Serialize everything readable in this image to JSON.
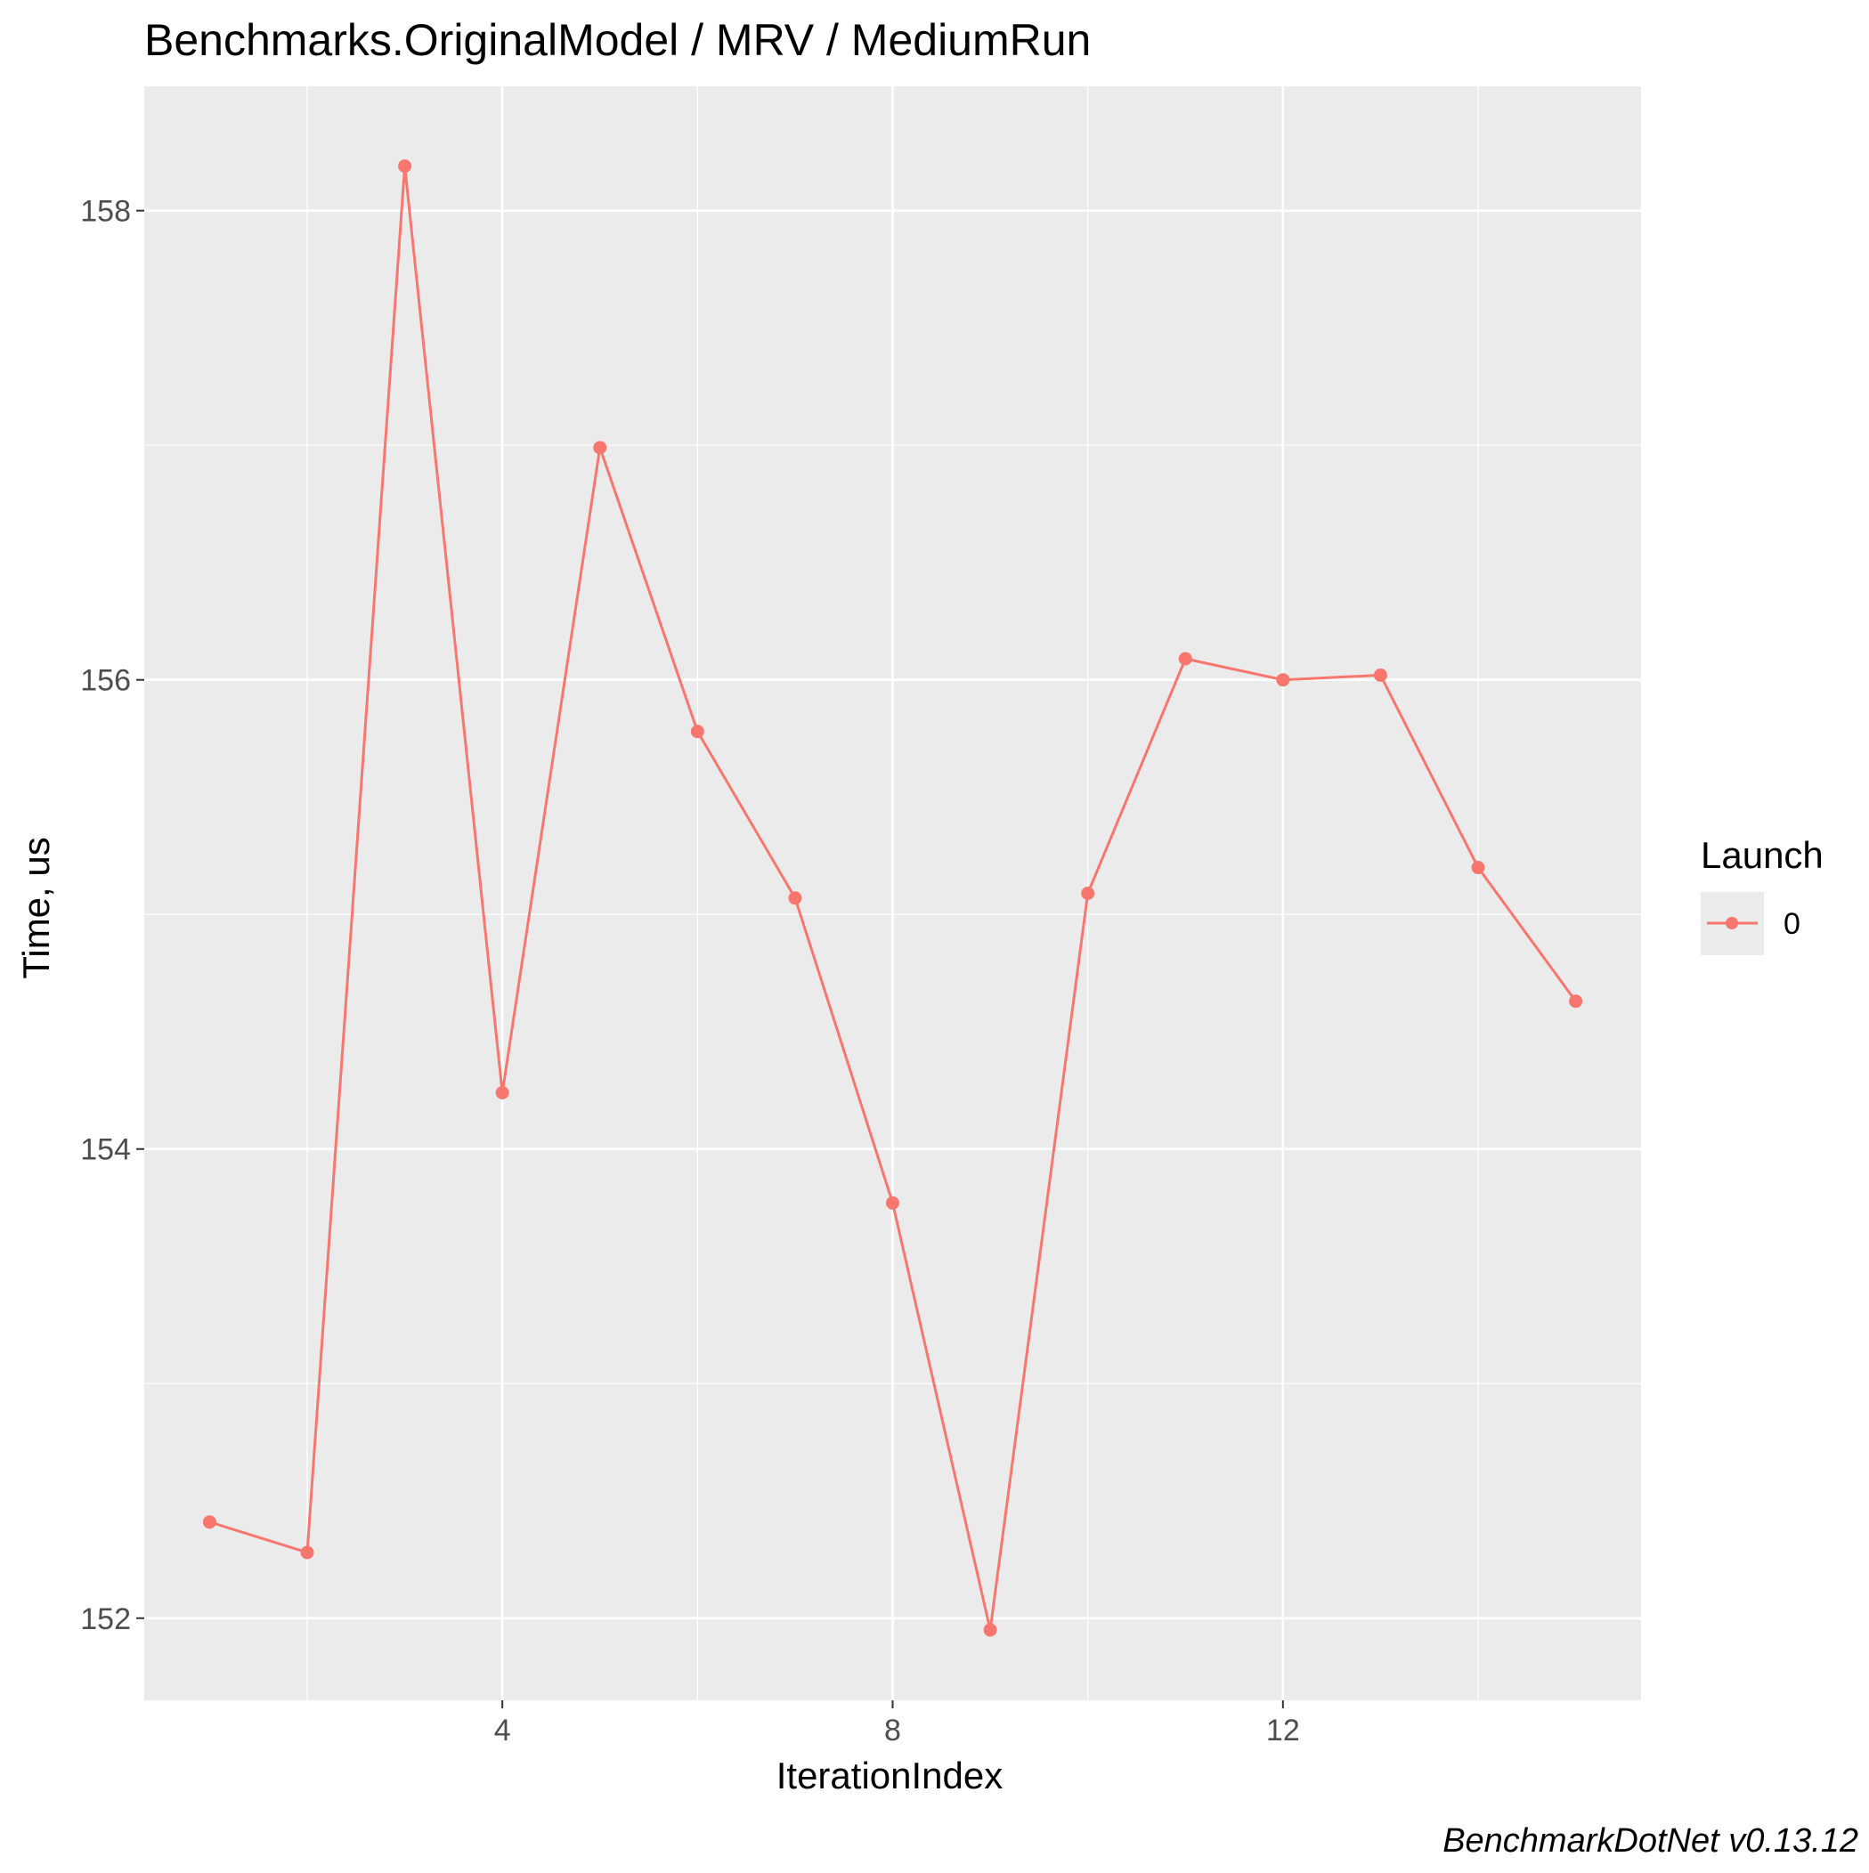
{
  "chart_data": {
    "type": "line",
    "title": "Benchmarks.OriginalModel / MRV / MediumRun",
    "xlabel": "IterationIndex",
    "ylabel": "Time, us",
    "caption": "BenchmarkDotNet v0.13.12",
    "xlim": [
      0.33,
      15.67
    ],
    "ylim": [
      151.65,
      158.53
    ],
    "x_ticks": [
      4,
      8,
      12
    ],
    "x_minor_ticks": [
      2,
      6,
      10,
      14
    ],
    "y_ticks": [
      152,
      154,
      156,
      158
    ],
    "y_minor_ticks": [
      153,
      155,
      157
    ],
    "grid": true,
    "background": "#ebebeb",
    "legend": {
      "title": "Launch",
      "position": "right",
      "entries": [
        {
          "label": "0",
          "color": "#f8766d"
        }
      ]
    },
    "series": [
      {
        "name": "0",
        "color": "#f8766d",
        "x": [
          1,
          2,
          3,
          4,
          5,
          6,
          7,
          8,
          9,
          10,
          11,
          12,
          13,
          14,
          15
        ],
        "y": [
          152.41,
          152.28,
          158.19,
          154.24,
          156.99,
          155.78,
          155.07,
          153.77,
          151.95,
          155.09,
          156.09,
          156.0,
          156.02,
          155.2,
          154.63
        ]
      }
    ]
  }
}
